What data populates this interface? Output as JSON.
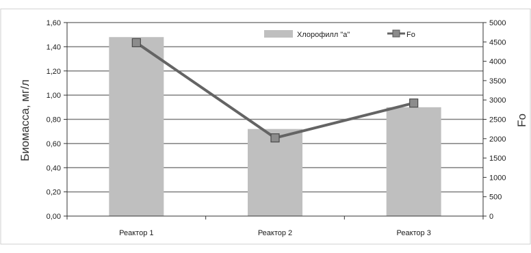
{
  "chart_data": {
    "type": "bar+line",
    "categories": [
      "Реактор 1",
      "Реактор 2",
      "Реактор 3"
    ],
    "series": [
      {
        "name": "Хлорофилл \"a\"",
        "type": "bar",
        "axis": "left",
        "values": [
          1.48,
          0.72,
          0.9
        ]
      },
      {
        "name": "Fo",
        "type": "line",
        "axis": "right",
        "values": [
          4480,
          2020,
          2920
        ]
      }
    ],
    "ylabel": "Биомасса, мг/л",
    "y2label": "Fo",
    "ylim": [
      0,
      1.6
    ],
    "y2lim": [
      0,
      5000
    ],
    "yticks": [
      "0,00",
      "0,20",
      "0,40",
      "0,60",
      "0,80",
      "1,00",
      "1,20",
      "1,40",
      "1,60"
    ],
    "y2ticks": [
      "0",
      "500",
      "1000",
      "1500",
      "2000",
      "2500",
      "3000",
      "3500",
      "4000",
      "4500",
      "5000"
    ],
    "grid": true,
    "legend_position": "top-right",
    "colors": {
      "bar": "#bfbfbf",
      "line": "#646464",
      "marker": "#8c8c8c",
      "grid": "#7f7f7f"
    }
  }
}
